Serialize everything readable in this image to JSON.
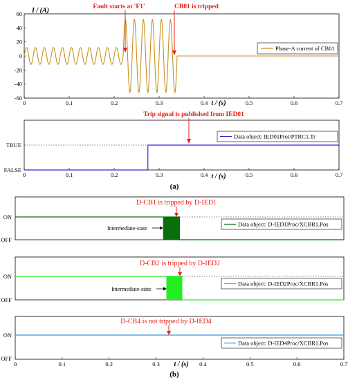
{
  "captions": {
    "a": "(a)",
    "b": "(b)"
  },
  "chart_data": [
    {
      "id": "current",
      "type": "line",
      "ylabel": "I / (A)",
      "xlabel": "t / (s)",
      "xlim": [
        0,
        0.7
      ],
      "ylim": [
        -60,
        60
      ],
      "xticks": [
        "0",
        "0.1",
        "0.2",
        "0.3",
        "0.4",
        "0.5",
        "0.6",
        "0.7"
      ],
      "yticks": [
        "-60",
        "-40",
        "-20",
        "0",
        "20",
        "40",
        "60"
      ],
      "series": [
        {
          "name": "Phase-A current of CB01",
          "color": "#c8901e",
          "segments": [
            {
              "t_start": 0,
              "t_end": 0.22,
              "amplitude": 12,
              "frequency_hz": 50
            },
            {
              "t_start": 0.22,
              "t_end": 0.34,
              "amplitude": 52,
              "frequency_hz": 50
            },
            {
              "t_start": 0.34,
              "t_end": 0.7,
              "amplitude": 0,
              "frequency_hz": 50
            }
          ]
        }
      ],
      "annotations": [
        {
          "text": "Fault starts at 'F1'",
          "t": 0.22
        },
        {
          "text": "CB01 is tripped",
          "t": 0.34
        }
      ],
      "legend_position": "right"
    },
    {
      "id": "trip",
      "type": "line",
      "xlabel": "t / (s)",
      "xlim": [
        0,
        0.7
      ],
      "ylim": [
        0,
        1
      ],
      "xticks": [
        "0",
        "0.1",
        "0.2",
        "0.3",
        "0.4",
        "0.5",
        "0.6",
        "0.7"
      ],
      "ycategories": [
        "FALSE",
        "TRUE"
      ],
      "series": [
        {
          "name": "Data object: IED01Prot/PTRC1.Tr",
          "color": "#2a2ad0",
          "steps": [
            {
              "t": 0,
              "state": "FALSE"
            },
            {
              "t": 0.275,
              "state": "TRUE"
            }
          ]
        }
      ],
      "annotations": [
        {
          "text": "Trip signal is published from IED01",
          "t": 0.275
        }
      ],
      "legend_position": "right"
    },
    {
      "id": "dcb1",
      "type": "line",
      "xlim": [
        0,
        0.7
      ],
      "ycategories": [
        "OFF",
        "ON"
      ],
      "series": [
        {
          "name": "Data object: D-IED1Proc/XCBR1.Pos",
          "color": "#0a6e0a",
          "steps": [
            {
              "t": 0,
              "state": "ON"
            },
            {
              "t": 0.35,
              "state": "OFF"
            }
          ],
          "intermediate": [
            0.315,
            0.35
          ]
        }
      ],
      "annotations": [
        {
          "text": "D-CB1 is tripped by D-IED1",
          "t": 0.335
        },
        {
          "text": "Intermediate-state",
          "t": 0.315
        }
      ],
      "legend_position": "right"
    },
    {
      "id": "dcb2",
      "type": "line",
      "xlim": [
        0,
        0.7
      ],
      "ycategories": [
        "OFF",
        "ON"
      ],
      "series": [
        {
          "name": "Data object: D-IED2Proc/XCBR1.Pos",
          "color": "#22ee22",
          "steps": [
            {
              "t": 0,
              "state": "ON"
            },
            {
              "t": 0.355,
              "state": "OFF"
            }
          ],
          "intermediate": [
            0.322,
            0.355
          ]
        }
      ],
      "annotations": [
        {
          "text": "D-CB2 is tripped by D-IED2",
          "t": 0.34
        },
        {
          "text": "Intermediate-state",
          "t": 0.322
        }
      ],
      "legend_position": "right"
    },
    {
      "id": "dcb4",
      "type": "line",
      "xlabel": "t / (s)",
      "xlim": [
        0,
        0.7
      ],
      "ycategories": [
        "OFF",
        "ON"
      ],
      "xticks": [
        "0",
        "0.1",
        "0.2",
        "0.3",
        "0.4",
        "0.5",
        "0.6",
        "0.7"
      ],
      "series": [
        {
          "name": "Data object: D-IED4Proc/XCBR1.Pos",
          "color": "#3399dd",
          "steps": [
            {
              "t": 0,
              "state": "ON"
            }
          ]
        }
      ],
      "annotations": [
        {
          "text": "D-CB4 is not tripped by D-IED4",
          "t": 0.33
        }
      ],
      "legend_position": "right"
    }
  ]
}
